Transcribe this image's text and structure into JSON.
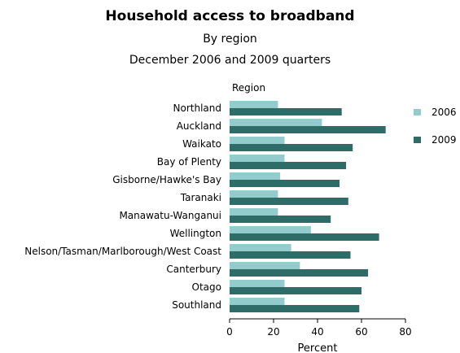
{
  "chart_data": {
    "type": "bar",
    "orientation": "horizontal",
    "title": "Household access to broadband",
    "subtitle": "By region",
    "subtitle2": "December 2006 and 2009 quarters",
    "ylabel": "Region",
    "xlabel": "Percent",
    "xlim": [
      0,
      80
    ],
    "xticks": [
      0,
      20,
      40,
      60,
      80
    ],
    "grid": false,
    "legend_position": "right",
    "categories": [
      "Northland",
      "Auckland",
      "Waikato",
      "Bay of Plenty",
      "Gisborne/Hawke's Bay",
      "Taranaki",
      "Manawatu-Wanganui",
      "Wellington",
      "Nelson/Tasman/Marlborough/West Coast",
      "Canterbury",
      "Otago",
      "Southland"
    ],
    "series": [
      {
        "name": "2006",
        "color": "#93cccc",
        "values": [
          22,
          42,
          25,
          25,
          23,
          22,
          22,
          37,
          28,
          32,
          25,
          25
        ]
      },
      {
        "name": "2009",
        "color": "#2e6c68",
        "values": [
          51,
          71,
          56,
          53,
          50,
          54,
          46,
          68,
          55,
          63,
          60,
          59
        ]
      }
    ]
  }
}
